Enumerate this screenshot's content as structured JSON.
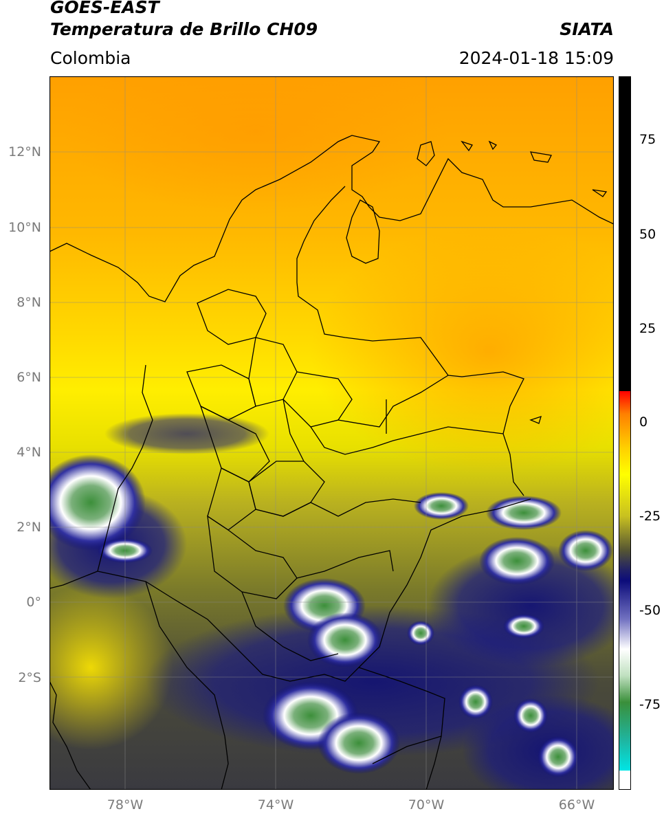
{
  "header": {
    "satellite": "GOES-EAST",
    "product": "Temperatura de Brillo CH09",
    "brand": "SIATA",
    "region": "Colombia",
    "timestamp": "2024-01-18 15:09"
  },
  "map": {
    "lat_labels": [
      "12°N",
      "10°N",
      "8°N",
      "6°N",
      "4°N",
      "2°N",
      "0°",
      "2°S"
    ],
    "lon_labels": [
      "78°W",
      "74°W",
      "70°W",
      "66°W"
    ]
  },
  "colorbar": {
    "ticks": [
      "75",
      "50",
      "25",
      "0",
      "-25",
      "-50",
      "-75"
    ]
  },
  "colors": {
    "warm_orange": "#ffa000",
    "yellow": "#ffff00",
    "olive": "#8f8f1f",
    "dark_gray": "#3a3a3a",
    "navy": "#0c0c7a",
    "white": "#ffffff",
    "green": "#2e8b2e",
    "cyan": "#00e5e5",
    "red": "#ff1a00",
    "black": "#000000"
  }
}
